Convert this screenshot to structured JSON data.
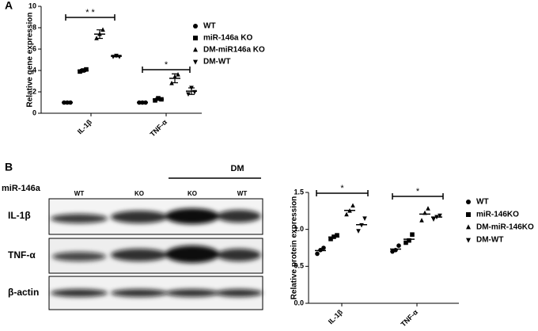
{
  "panels": [
    "A",
    "B"
  ],
  "blot": {
    "group_label": "DM",
    "row_header": "miR-146a",
    "lanes": [
      "WT",
      "KO",
      "KO",
      "WT"
    ],
    "proteins": [
      "IL-1β",
      "TNF-α",
      "β-actin"
    ]
  },
  "chart_data": [
    {
      "type": "scatter",
      "ylabel": "Relative gene expression",
      "categories": [
        "IL-1β",
        "TNF-α"
      ],
      "ylim": [
        0,
        10
      ],
      "yticks": [
        0,
        2,
        4,
        6,
        8,
        10
      ],
      "error_bars": true,
      "annotations": [
        "* *",
        "*"
      ],
      "series": [
        {
          "name": "WT",
          "marker": "circle",
          "color": "#000000",
          "values": [
            [
              1.0,
              1.0,
              1.0
            ],
            [
              1.0,
              1.0,
              1.0
            ]
          ]
        },
        {
          "name": "miR-146a KO",
          "marker": "square",
          "color": "#000000",
          "values": [
            [
              3.9,
              4.0,
              4.1
            ],
            [
              1.2,
              1.4,
              1.3
            ]
          ]
        },
        {
          "name": "DM-miR146a KO",
          "marker": "triangle-up",
          "color": "#000000",
          "values": [
            [
              7.0,
              7.4,
              7.8
            ],
            [
              2.8,
              3.4,
              3.6
            ]
          ]
        },
        {
          "name": "DM-WT",
          "marker": "triangle-down",
          "color": "#000000",
          "values": [
            [
              5.3,
              5.4,
              5.3
            ],
            [
              1.8,
              2.4,
              2.0
            ]
          ]
        }
      ]
    },
    {
      "type": "scatter",
      "ylabel": "Relative protein expression",
      "categories": [
        "IL-1β",
        "TNF-α"
      ],
      "ylim": [
        0,
        1.5
      ],
      "yticks": [
        {
          "value": 0,
          "label": "0.0"
        },
        {
          "value": 0.5,
          "label": "0.5"
        },
        {
          "value": 1,
          "label": "1.0"
        },
        {
          "value": 1.5,
          "label": "1.5"
        }
      ],
      "error_bars": false,
      "annotations": [
        "*",
        "*"
      ],
      "series": [
        {
          "name": "WT",
          "marker": "circle",
          "color": "#000000",
          "values": [
            [
              0.67,
              0.72,
              0.75
            ],
            [
              0.7,
              0.72,
              0.78
            ]
          ]
        },
        {
          "name": "miR-146KO",
          "marker": "square",
          "color": "#000000",
          "values": [
            [
              0.87,
              0.9,
              0.92
            ],
            [
              0.82,
              0.85,
              0.93
            ]
          ]
        },
        {
          "name": "DM-miR-146KO",
          "marker": "triangle-up",
          "color": "#000000",
          "values": [
            [
              1.2,
              1.25,
              1.32
            ],
            [
              1.12,
              1.22,
              1.28
            ]
          ]
        },
        {
          "name": "DM-WT",
          "marker": "triangle-down",
          "color": "#000000",
          "values": [
            [
              0.98,
              1.06,
              1.15
            ],
            [
              1.14,
              1.17,
              1.19
            ]
          ]
        }
      ]
    }
  ]
}
